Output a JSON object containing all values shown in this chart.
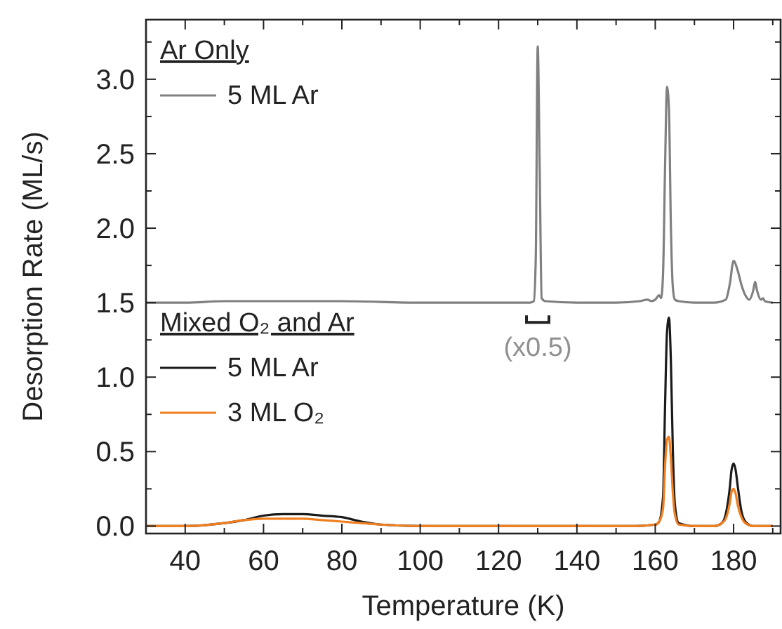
{
  "chart_data": {
    "type": "line",
    "xlabel": "Temperature (K)",
    "ylabel": "Desorption Rate (ML/s)",
    "xlim": [
      30,
      192
    ],
    "ylim": [
      -0.05,
      3.4
    ],
    "xticks": [
      {
        "value": 30,
        "label": null
      },
      40,
      {
        "value": 50,
        "label": null
      },
      60,
      {
        "value": 70,
        "label": null
      },
      80,
      {
        "value": 90,
        "label": null
      },
      100,
      {
        "value": 110,
        "label": null
      },
      120,
      {
        "value": 130,
        "label": null
      },
      140,
      {
        "value": 150,
        "label": null
      },
      160,
      {
        "value": 170,
        "label": null
      },
      180,
      {
        "value": 190,
        "label": null
      }
    ],
    "yticks": [
      {
        "value": 0,
        "label": "0.0"
      },
      {
        "value": 0.25,
        "label": null
      },
      {
        "value": 0.5,
        "label": "0.5"
      },
      {
        "value": 0.75,
        "label": null
      },
      {
        "value": 1,
        "label": "1.0"
      },
      {
        "value": 1.25,
        "label": null
      },
      {
        "value": 1.5,
        "label": "1.5"
      },
      {
        "value": 1.75,
        "label": null
      },
      {
        "value": 2,
        "label": "2.0"
      },
      {
        "value": 2.25,
        "label": null
      },
      {
        "value": 2.5,
        "label": "2.5"
      },
      {
        "value": 2.75,
        "label": null
      },
      {
        "value": 3,
        "label": "3.0"
      },
      {
        "value": 3.25,
        "label": null
      }
    ],
    "grid": false,
    "legend": "top left",
    "marker": "none",
    "line_style": "solid",
    "annotations": [
      "Ar Only",
      "Mixed O₂ and Ar",
      "(x0.5)"
    ],
    "series": [
      {
        "name": "5 ML Ar",
        "color": "#808080",
        "x": [
          30,
          40,
          50,
          60,
          80,
          100,
          120,
          128,
          129,
          129.5,
          130,
          130.5,
          131,
          132,
          140,
          150,
          156,
          158,
          159,
          160,
          161,
          161.5,
          162,
          162.5,
          163,
          163.5,
          164,
          164.5,
          165,
          166,
          170,
          175,
          178,
          179,
          180,
          181,
          182,
          183,
          184,
          185,
          185.5,
          186,
          187,
          187.5,
          188,
          190
        ],
        "values": [
          1.5,
          1.5,
          1.51,
          1.51,
          1.51,
          1.5,
          1.5,
          1.5,
          1.51,
          1.8,
          3.22,
          2.4,
          1.53,
          1.51,
          1.5,
          1.5,
          1.51,
          1.52,
          1.51,
          1.52,
          1.55,
          1.53,
          1.7,
          2.4,
          2.95,
          2.8,
          2.0,
          1.6,
          1.52,
          1.51,
          1.5,
          1.5,
          1.52,
          1.62,
          1.78,
          1.72,
          1.62,
          1.55,
          1.52,
          1.58,
          1.64,
          1.58,
          1.52,
          1.53,
          1.51,
          1.5
        ]
      },
      {
        "name": "5 ML Ar",
        "color": "#1a1a1a",
        "x": [
          30,
          40,
          50,
          55,
          60,
          65,
          70,
          75,
          80,
          85,
          90,
          100,
          120,
          140,
          155,
          160,
          161,
          162,
          162.5,
          163,
          163.5,
          164,
          164.5,
          165,
          166,
          170,
          175,
          177,
          178,
          179,
          179.5,
          180,
          180.5,
          181,
          182,
          183,
          185,
          190
        ],
        "values": [
          0,
          0,
          0.02,
          0.04,
          0.07,
          0.08,
          0.08,
          0.07,
          0.06,
          0.03,
          0.01,
          0,
          0,
          0,
          0,
          0.01,
          0.03,
          0.2,
          0.8,
          1.3,
          1.4,
          1.1,
          0.5,
          0.15,
          0.02,
          0,
          0,
          0.02,
          0.08,
          0.25,
          0.38,
          0.42,
          0.38,
          0.28,
          0.1,
          0.03,
          0,
          0
        ]
      },
      {
        "name": "3 ML O₂",
        "color": "#f07f1f",
        "x": [
          30,
          40,
          50,
          55,
          60,
          65,
          70,
          75,
          80,
          85,
          90,
          100,
          120,
          140,
          155,
          160,
          161,
          162,
          162.5,
          163,
          163.5,
          164,
          164.5,
          165,
          166,
          170,
          175,
          177,
          178,
          179,
          179.5,
          180,
          180.5,
          181,
          182,
          183,
          185,
          190
        ],
        "values": [
          0,
          0,
          0.02,
          0.04,
          0.05,
          0.05,
          0.05,
          0.04,
          0.03,
          0.02,
          0.01,
          0,
          0,
          0,
          0,
          0.01,
          0.03,
          0.12,
          0.4,
          0.58,
          0.6,
          0.45,
          0.22,
          0.08,
          0.01,
          0,
          0,
          0.02,
          0.05,
          0.15,
          0.23,
          0.25,
          0.22,
          0.15,
          0.06,
          0.02,
          0,
          0
        ]
      }
    ]
  }
}
